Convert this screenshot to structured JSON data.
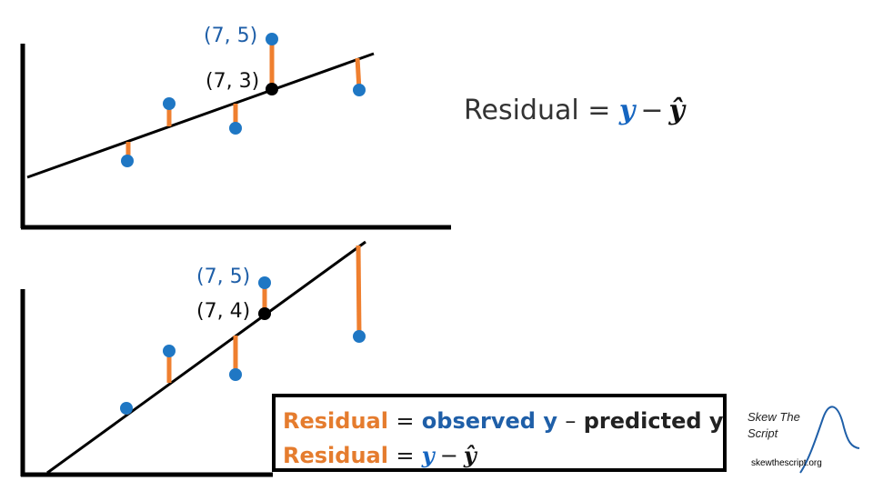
{
  "top_panel": {
    "point_labels": {
      "observed": "(7, 5)",
      "predicted": "(7, 3)"
    }
  },
  "bottom_panel": {
    "point_labels": {
      "observed": "(7, 5)",
      "predicted": "(7, 4)"
    }
  },
  "formula_top": {
    "prefix": "Residual =",
    "y": "y",
    "minus": "−",
    "yhat": "ŷ"
  },
  "definition_box": {
    "line1": {
      "term": "Residual",
      "equals": "=",
      "observed": "observed y",
      "minus": "–",
      "predicted": "predicted y"
    },
    "line2": {
      "term": "Residual",
      "equals": "=",
      "y": "y",
      "minus": "−",
      "yhat": "ŷ"
    }
  },
  "logo": {
    "name": "Skew The Script",
    "url": "skewthescript.org"
  },
  "colors": {
    "observed_point": "#1f77c4",
    "predicted_point": "#000000",
    "residual_segment": "#ef7f2f",
    "regression_line": "#000000"
  }
}
